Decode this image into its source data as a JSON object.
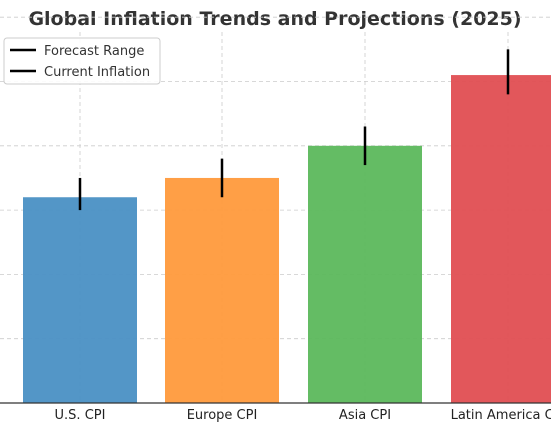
{
  "chart_data": {
    "type": "bar",
    "title": "Global Inflation Trends and Projections (2025)",
    "xlabel": "",
    "ylabel": "",
    "categories": [
      "U.S. CPI",
      "Europe CPI",
      "Asia CPI",
      "Latin America CPI"
    ],
    "series": [
      {
        "name": "Current Inflation",
        "values": [
          3.2,
          3.5,
          4.0,
          5.1
        ]
      }
    ],
    "error_ranges": [
      {
        "name": "Forecast Range",
        "low": [
          3.0,
          3.2,
          3.7,
          4.8
        ],
        "high": [
          3.5,
          3.8,
          4.3,
          5.5
        ]
      }
    ],
    "ylim": [
      0,
      6
    ],
    "grid": true,
    "legend_position": "top-left",
    "colors": [
      "#4a90c4",
      "#ff9a3c",
      "#5cb85c",
      "#e04e52"
    ],
    "errorbar_color": "#000000"
  },
  "legend": {
    "items": [
      {
        "label": "Forecast Range",
        "color": "#000000"
      },
      {
        "label": "Current Inflation",
        "color": "#000000"
      }
    ]
  }
}
